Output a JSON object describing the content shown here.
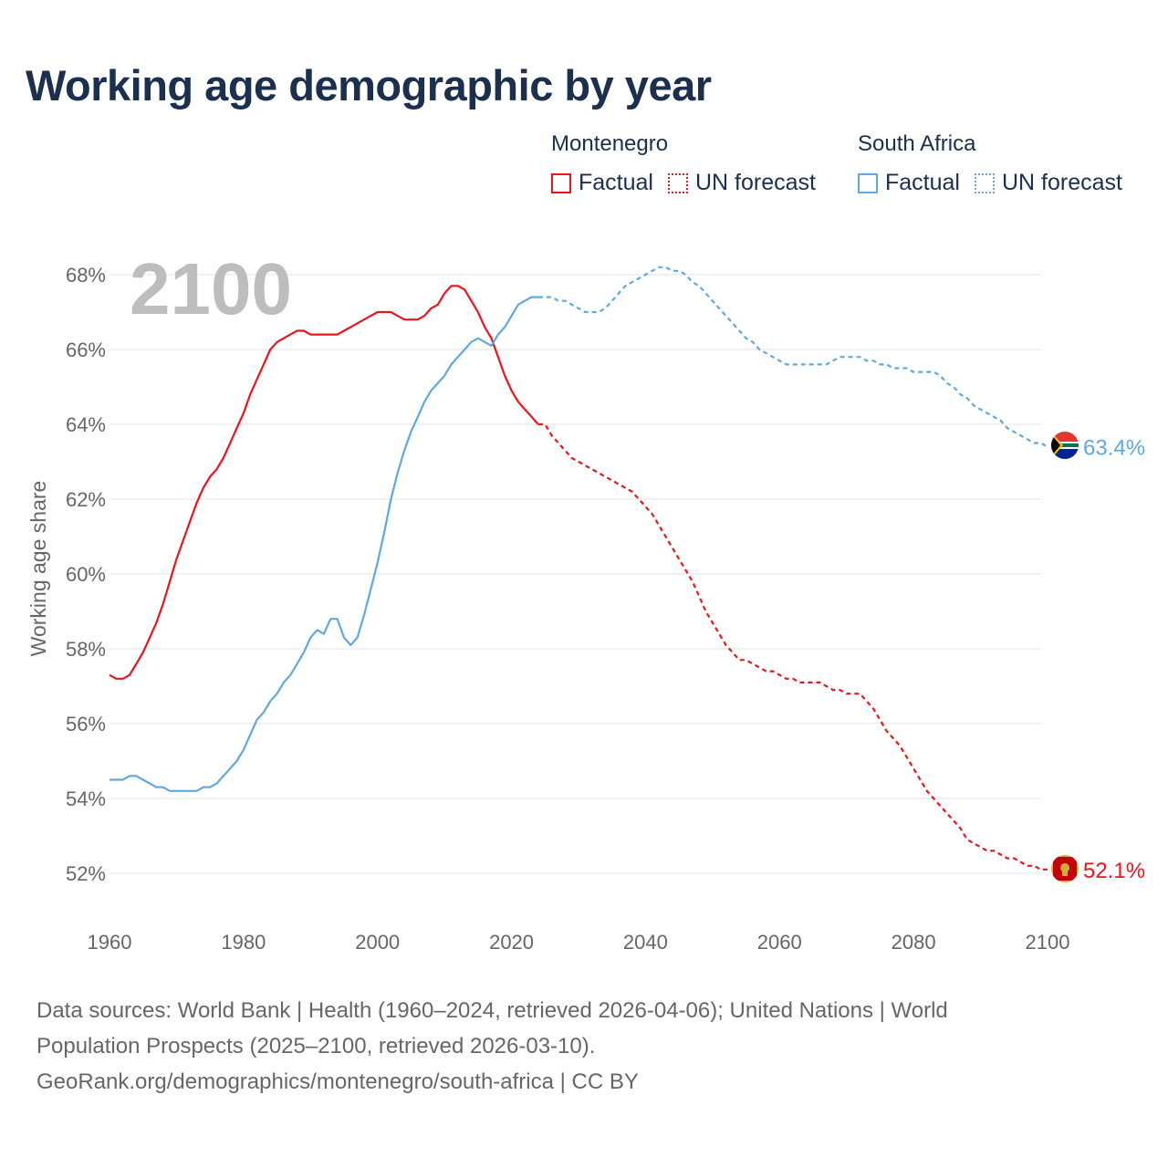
{
  "title": "Working age demographic by year",
  "legend": {
    "groups": [
      {
        "name": "Montenegro",
        "color": "#e8161b",
        "factual_label": "Factual",
        "forecast_label": "UN forecast"
      },
      {
        "name": "South Africa",
        "color": "#5fa8e0",
        "factual_label": "Factual",
        "forecast_label": "UN forecast"
      }
    ]
  },
  "year_display": "2100",
  "footer": {
    "line1": "Data sources: World Bank | Health (1960–2024, retrieved 2026-04-06); United Nations | World",
    "line2": "Population Prospects (2025–2100, retrieved 2026-03-10).",
    "line3": "GeoRank.org/demographics/montenegro/south-africa | CC BY"
  },
  "chart_data": {
    "type": "line",
    "title": "Working age demographic by year",
    "xlabel": "",
    "ylabel": "Working age share",
    "xlim": [
      1960,
      2103
    ],
    "ylim": [
      51.2,
      68.5
    ],
    "x_ticks": [
      1960,
      1980,
      2000,
      2020,
      2040,
      2060,
      2080,
      2100
    ],
    "y_ticks": [
      52,
      54,
      56,
      58,
      60,
      62,
      64,
      66,
      68
    ],
    "y_tick_suffix": "%",
    "grid": true,
    "forecast_start": 2024,
    "series": [
      {
        "name": "Montenegro",
        "color": "#e8161b",
        "flag": "montenegro-flag-icon",
        "end_label": "52.1%",
        "points": [
          [
            1960,
            57.3
          ],
          [
            1961,
            57.2
          ],
          [
            1962,
            57.2
          ],
          [
            1963,
            57.3
          ],
          [
            1964,
            57.6
          ],
          [
            1965,
            57.9
          ],
          [
            1966,
            58.3
          ],
          [
            1967,
            58.7
          ],
          [
            1968,
            59.2
          ],
          [
            1969,
            59.8
          ],
          [
            1970,
            60.4
          ],
          [
            1971,
            60.9
          ],
          [
            1972,
            61.4
          ],
          [
            1973,
            61.9
          ],
          [
            1974,
            62.3
          ],
          [
            1975,
            62.6
          ],
          [
            1976,
            62.8
          ],
          [
            1977,
            63.1
          ],
          [
            1978,
            63.5
          ],
          [
            1979,
            63.9
          ],
          [
            1980,
            64.3
          ],
          [
            1981,
            64.8
          ],
          [
            1982,
            65.2
          ],
          [
            1983,
            65.6
          ],
          [
            1984,
            66.0
          ],
          [
            1985,
            66.2
          ],
          [
            1986,
            66.3
          ],
          [
            1987,
            66.4
          ],
          [
            1988,
            66.5
          ],
          [
            1989,
            66.5
          ],
          [
            1990,
            66.4
          ],
          [
            1991,
            66.4
          ],
          [
            1992,
            66.4
          ],
          [
            1993,
            66.4
          ],
          [
            1994,
            66.4
          ],
          [
            1995,
            66.5
          ],
          [
            1996,
            66.6
          ],
          [
            1997,
            66.7
          ],
          [
            1998,
            66.8
          ],
          [
            1999,
            66.9
          ],
          [
            2000,
            67.0
          ],
          [
            2001,
            67.0
          ],
          [
            2002,
            67.0
          ],
          [
            2003,
            66.9
          ],
          [
            2004,
            66.8
          ],
          [
            2005,
            66.8
          ],
          [
            2006,
            66.8
          ],
          [
            2007,
            66.9
          ],
          [
            2008,
            67.1
          ],
          [
            2009,
            67.2
          ],
          [
            2010,
            67.5
          ],
          [
            2011,
            67.7
          ],
          [
            2012,
            67.7
          ],
          [
            2013,
            67.6
          ],
          [
            2014,
            67.3
          ],
          [
            2015,
            67.0
          ],
          [
            2016,
            66.6
          ],
          [
            2017,
            66.3
          ],
          [
            2018,
            65.8
          ],
          [
            2019,
            65.3
          ],
          [
            2020,
            64.9
          ],
          [
            2021,
            64.6
          ],
          [
            2022,
            64.4
          ],
          [
            2023,
            64.2
          ],
          [
            2024,
            64.0
          ],
          [
            2025,
            64.0
          ],
          [
            2026,
            63.7
          ],
          [
            2027,
            63.5
          ],
          [
            2028,
            63.3
          ],
          [
            2029,
            63.1
          ],
          [
            2030,
            63.0
          ],
          [
            2031,
            62.9
          ],
          [
            2032,
            62.8
          ],
          [
            2033,
            62.7
          ],
          [
            2034,
            62.6
          ],
          [
            2035,
            62.5
          ],
          [
            2036,
            62.4
          ],
          [
            2037,
            62.3
          ],
          [
            2038,
            62.2
          ],
          [
            2039,
            62.0
          ],
          [
            2040,
            61.8
          ],
          [
            2041,
            61.6
          ],
          [
            2042,
            61.3
          ],
          [
            2043,
            61.0
          ],
          [
            2044,
            60.7
          ],
          [
            2045,
            60.4
          ],
          [
            2046,
            60.1
          ],
          [
            2047,
            59.8
          ],
          [
            2048,
            59.4
          ],
          [
            2049,
            59.0
          ],
          [
            2050,
            58.7
          ],
          [
            2051,
            58.4
          ],
          [
            2052,
            58.1
          ],
          [
            2053,
            57.9
          ],
          [
            2054,
            57.7
          ],
          [
            2055,
            57.7
          ],
          [
            2056,
            57.6
          ],
          [
            2057,
            57.5
          ],
          [
            2058,
            57.4
          ],
          [
            2059,
            57.4
          ],
          [
            2060,
            57.3
          ],
          [
            2061,
            57.2
          ],
          [
            2062,
            57.2
          ],
          [
            2063,
            57.1
          ],
          [
            2064,
            57.1
          ],
          [
            2065,
            57.1
          ],
          [
            2066,
            57.1
          ],
          [
            2067,
            57.0
          ],
          [
            2068,
            56.9
          ],
          [
            2069,
            56.9
          ],
          [
            2070,
            56.8
          ],
          [
            2071,
            56.8
          ],
          [
            2072,
            56.8
          ],
          [
            2073,
            56.6
          ],
          [
            2074,
            56.4
          ],
          [
            2075,
            56.1
          ],
          [
            2076,
            55.8
          ],
          [
            2077,
            55.6
          ],
          [
            2078,
            55.4
          ],
          [
            2079,
            55.1
          ],
          [
            2080,
            54.8
          ],
          [
            2081,
            54.5
          ],
          [
            2082,
            54.2
          ],
          [
            2083,
            54.0
          ],
          [
            2084,
            53.8
          ],
          [
            2085,
            53.6
          ],
          [
            2086,
            53.4
          ],
          [
            2087,
            53.2
          ],
          [
            2088,
            52.9
          ],
          [
            2089,
            52.8
          ],
          [
            2090,
            52.7
          ],
          [
            2091,
            52.6
          ],
          [
            2092,
            52.6
          ],
          [
            2093,
            52.5
          ],
          [
            2094,
            52.4
          ],
          [
            2095,
            52.4
          ],
          [
            2096,
            52.3
          ],
          [
            2097,
            52.2
          ],
          [
            2098,
            52.2
          ],
          [
            2099,
            52.1
          ],
          [
            2100,
            52.1
          ]
        ]
      },
      {
        "name": "South Africa",
        "color": "#5fa8e0",
        "flag": "south-africa-flag-icon",
        "end_label": "63.4%",
        "points": [
          [
            1960,
            54.5
          ],
          [
            1961,
            54.5
          ],
          [
            1962,
            54.5
          ],
          [
            1963,
            54.6
          ],
          [
            1964,
            54.6
          ],
          [
            1965,
            54.5
          ],
          [
            1966,
            54.4
          ],
          [
            1967,
            54.3
          ],
          [
            1968,
            54.3
          ],
          [
            1969,
            54.2
          ],
          [
            1970,
            54.2
          ],
          [
            1971,
            54.2
          ],
          [
            1972,
            54.2
          ],
          [
            1973,
            54.2
          ],
          [
            1974,
            54.3
          ],
          [
            1975,
            54.3
          ],
          [
            1976,
            54.4
          ],
          [
            1977,
            54.6
          ],
          [
            1978,
            54.8
          ],
          [
            1979,
            55.0
          ],
          [
            1980,
            55.3
          ],
          [
            1981,
            55.7
          ],
          [
            1982,
            56.1
          ],
          [
            1983,
            56.3
          ],
          [
            1984,
            56.6
          ],
          [
            1985,
            56.8
          ],
          [
            1986,
            57.1
          ],
          [
            1987,
            57.3
          ],
          [
            1988,
            57.6
          ],
          [
            1989,
            57.9
          ],
          [
            1990,
            58.3
          ],
          [
            1991,
            58.5
          ],
          [
            1992,
            58.4
          ],
          [
            1993,
            58.8
          ],
          [
            1994,
            58.8
          ],
          [
            1995,
            58.3
          ],
          [
            1996,
            58.1
          ],
          [
            1997,
            58.3
          ],
          [
            1998,
            58.9
          ],
          [
            1999,
            59.6
          ],
          [
            2000,
            60.3
          ],
          [
            2001,
            61.1
          ],
          [
            2002,
            62.0
          ],
          [
            2003,
            62.7
          ],
          [
            2004,
            63.3
          ],
          [
            2005,
            63.8
          ],
          [
            2006,
            64.2
          ],
          [
            2007,
            64.6
          ],
          [
            2008,
            64.9
          ],
          [
            2009,
            65.1
          ],
          [
            2010,
            65.3
          ],
          [
            2011,
            65.6
          ],
          [
            2012,
            65.8
          ],
          [
            2013,
            66.0
          ],
          [
            2014,
            66.2
          ],
          [
            2015,
            66.3
          ],
          [
            2016,
            66.2
          ],
          [
            2017,
            66.1
          ],
          [
            2018,
            66.4
          ],
          [
            2019,
            66.6
          ],
          [
            2020,
            66.9
          ],
          [
            2021,
            67.2
          ],
          [
            2022,
            67.3
          ],
          [
            2023,
            67.4
          ],
          [
            2024,
            67.4
          ],
          [
            2025,
            67.4
          ],
          [
            2026,
            67.4
          ],
          [
            2027,
            67.3
          ],
          [
            2028,
            67.3
          ],
          [
            2029,
            67.2
          ],
          [
            2030,
            67.1
          ],
          [
            2031,
            67.0
          ],
          [
            2032,
            67.0
          ],
          [
            2033,
            67.0
          ],
          [
            2034,
            67.1
          ],
          [
            2035,
            67.3
          ],
          [
            2036,
            67.5
          ],
          [
            2037,
            67.7
          ],
          [
            2038,
            67.8
          ],
          [
            2039,
            67.9
          ],
          [
            2040,
            68.0
          ],
          [
            2041,
            68.1
          ],
          [
            2042,
            68.2
          ],
          [
            2043,
            68.2
          ],
          [
            2044,
            68.1
          ],
          [
            2045,
            68.1
          ],
          [
            2046,
            68.0
          ],
          [
            2047,
            67.8
          ],
          [
            2048,
            67.7
          ],
          [
            2049,
            67.5
          ],
          [
            2050,
            67.3
          ],
          [
            2051,
            67.1
          ],
          [
            2052,
            66.9
          ],
          [
            2053,
            66.7
          ],
          [
            2054,
            66.5
          ],
          [
            2055,
            66.3
          ],
          [
            2056,
            66.2
          ],
          [
            2057,
            66.0
          ],
          [
            2058,
            65.9
          ],
          [
            2059,
            65.8
          ],
          [
            2060,
            65.7
          ],
          [
            2061,
            65.6
          ],
          [
            2062,
            65.6
          ],
          [
            2063,
            65.6
          ],
          [
            2064,
            65.6
          ],
          [
            2065,
            65.6
          ],
          [
            2066,
            65.6
          ],
          [
            2067,
            65.6
          ],
          [
            2068,
            65.7
          ],
          [
            2069,
            65.8
          ],
          [
            2070,
            65.8
          ],
          [
            2071,
            65.8
          ],
          [
            2072,
            65.8
          ],
          [
            2073,
            65.7
          ],
          [
            2074,
            65.7
          ],
          [
            2075,
            65.6
          ],
          [
            2076,
            65.6
          ],
          [
            2077,
            65.5
          ],
          [
            2078,
            65.5
          ],
          [
            2079,
            65.5
          ],
          [
            2080,
            65.4
          ],
          [
            2081,
            65.4
          ],
          [
            2082,
            65.4
          ],
          [
            2083,
            65.4
          ],
          [
            2084,
            65.3
          ],
          [
            2085,
            65.1
          ],
          [
            2086,
            65.0
          ],
          [
            2087,
            64.8
          ],
          [
            2088,
            64.7
          ],
          [
            2089,
            64.5
          ],
          [
            2090,
            64.4
          ],
          [
            2091,
            64.3
          ],
          [
            2092,
            64.2
          ],
          [
            2093,
            64.1
          ],
          [
            2094,
            63.9
          ],
          [
            2095,
            63.8
          ],
          [
            2096,
            63.7
          ],
          [
            2097,
            63.6
          ],
          [
            2098,
            63.5
          ],
          [
            2099,
            63.5
          ],
          [
            2100,
            63.4
          ]
        ]
      }
    ]
  }
}
